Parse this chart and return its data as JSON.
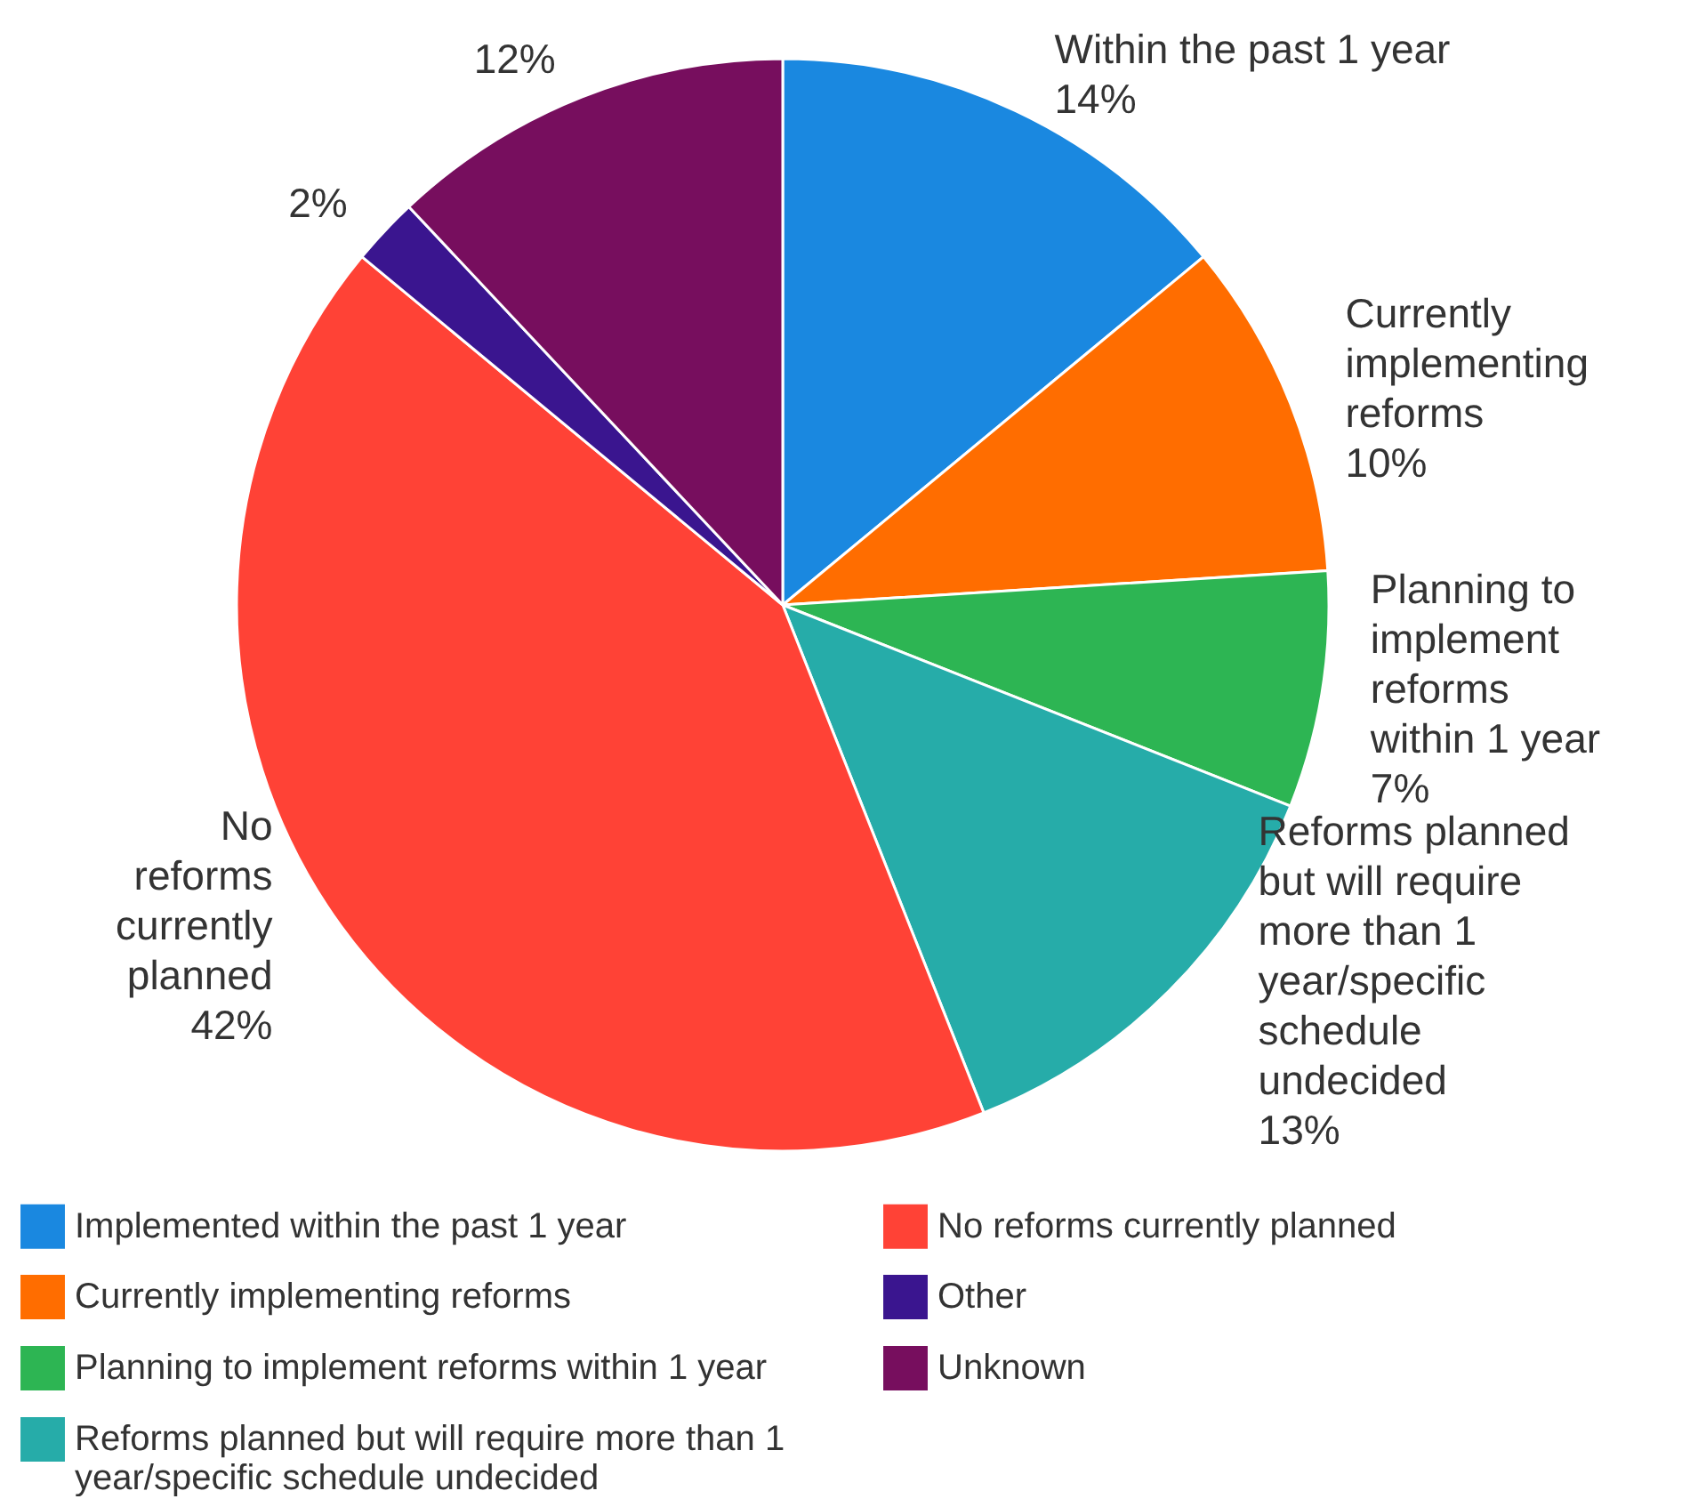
{
  "chart_data": {
    "type": "pie",
    "categories": [
      "Implemented within the past 1 year",
      "Currently implementing reforms",
      "Planning to implement reforms within 1 year",
      "Reforms planned but will require more than 1 year/specific schedule undecided",
      "No reforms currently planned",
      "Other",
      "Unknown"
    ],
    "values": [
      14,
      10,
      7,
      13,
      42,
      2,
      12
    ],
    "colors": [
      "#1a88e0",
      "#ff6d00",
      "#2db553",
      "#26aca9",
      "#ff4236",
      "#3a158f",
      "#770e5e"
    ],
    "value_labels": [
      "Within the past 1 year\n14%",
      "Currently\nimplementing\nreforms\n10%",
      "Planning to\nimplement\nreforms\nwithin 1 year\n7%",
      "Reforms planned\nbut will require\nmore than 1\nyear/specific\nschedule\nundecided\n13%",
      "No\nreforms\ncurrently\nplanned\n42%",
      "2%",
      "12%"
    ],
    "legend": "bottom"
  }
}
